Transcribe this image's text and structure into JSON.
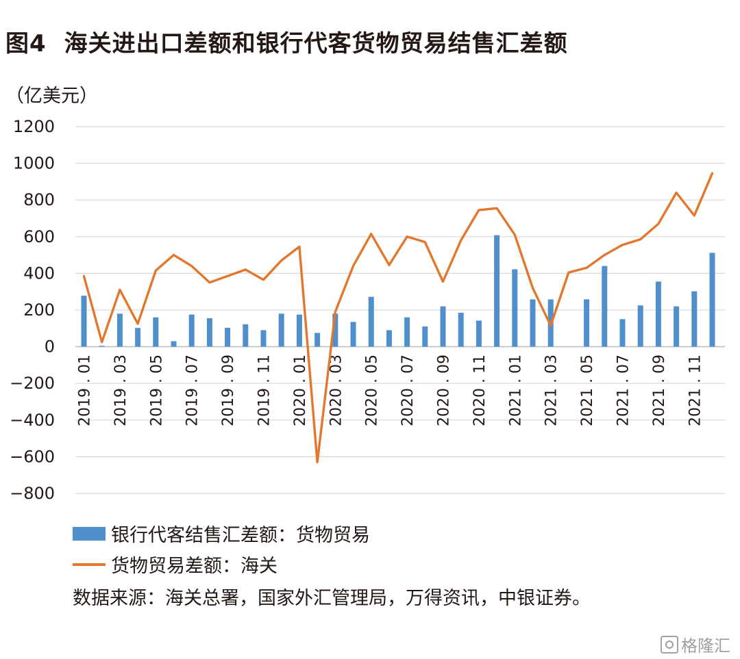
{
  "header": {
    "figure_no": "图4",
    "title": "海关进出口差额和银行代客货物贸易结售汇差额"
  },
  "unit_label": "（亿美元）",
  "legend": {
    "bar_label": "银行代客结售汇差额：货物贸易",
    "line_label": "货物贸易差额：海关"
  },
  "source_note": "数据来源：海关总署，国家外汇管理局，万得资讯，中银证券。",
  "watermark": "格隆汇",
  "colors": {
    "bar": "#4f8fcc",
    "line": "#e2772d",
    "grid": "#d9d9d9"
  },
  "chart_data": {
    "type": "bar+line",
    "title": "海关进出口差额和银行代客货物贸易结售汇差额",
    "ylabel": "（亿美元）",
    "ylim": [
      -800,
      1200
    ],
    "yticks": [
      1200,
      1000,
      800,
      600,
      400,
      200,
      0,
      -200,
      -400,
      -600,
      -800
    ],
    "grid": true,
    "legend_position": "bottom",
    "x_tick_labels": [
      "2019.01",
      "2019.03",
      "2019.05",
      "2019.07",
      "2019.09",
      "2019.11",
      "2020.01",
      "2020.03",
      "2020.05",
      "2020.07",
      "2020.09",
      "2020.11",
      "2021.01",
      "2021.03",
      "2021.05",
      "2021.07",
      "2021.09",
      "2021.11"
    ],
    "categories": [
      "2019.01",
      "2019.02",
      "2019.03",
      "2019.04",
      "2019.05",
      "2019.06",
      "2019.07",
      "2019.08",
      "2019.09",
      "2019.10",
      "2019.11",
      "2019.12",
      "2020.01",
      "2020.02",
      "2020.03",
      "2020.04",
      "2020.05",
      "2020.06",
      "2020.07",
      "2020.08",
      "2020.09",
      "2020.10",
      "2020.11",
      "2020.12",
      "2021.01",
      "2021.02",
      "2021.03",
      "2021.04",
      "2021.05",
      "2021.06",
      "2021.07",
      "2021.08",
      "2021.09",
      "2021.10",
      "2021.11",
      "2021.12"
    ],
    "series": [
      {
        "name": "银行代客结售汇差额：货物贸易",
        "type": "bar",
        "values": [
          278,
          5,
          180,
          102,
          160,
          30,
          175,
          155,
          103,
          122,
          90,
          180,
          175,
          75,
          180,
          135,
          272,
          90,
          160,
          110,
          220,
          185,
          142,
          608,
          422,
          258,
          258,
          0,
          258,
          440,
          150,
          225,
          355,
          220,
          302,
          512
        ]
      },
      {
        "name": "货物贸易差额：海关",
        "type": "line",
        "values": [
          385,
          25,
          310,
          125,
          415,
          500,
          440,
          350,
          385,
          420,
          365,
          470,
          545,
          -630,
          190,
          440,
          615,
          445,
          600,
          570,
          355,
          580,
          745,
          755,
          610,
          320,
          115,
          405,
          430,
          500,
          555,
          585,
          670,
          840,
          715,
          945
        ]
      }
    ]
  }
}
